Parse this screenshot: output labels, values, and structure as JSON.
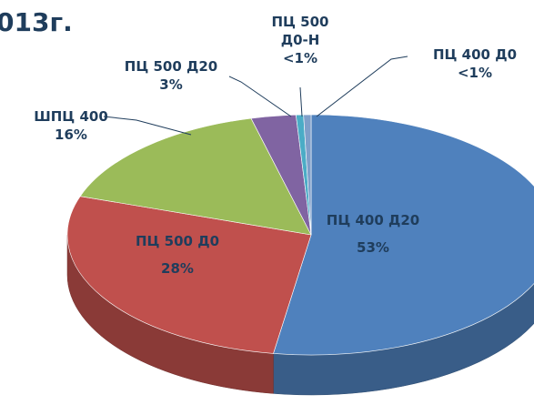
{
  "chart_data": {
    "type": "pie3d",
    "title": "013г.",
    "categories": [
      "ПЦ 400 Д20",
      "ПЦ 500 Д0",
      "ШПЦ 400",
      "ПЦ 500 Д20",
      "ПЦ 500 Д0-Н",
      "ПЦ 400 Д0"
    ],
    "values": [
      53,
      28,
      16,
      3,
      0.5,
      0.5
    ],
    "value_labels": [
      "53%",
      "28%",
      "16%",
      "3%",
      "<1%",
      "<1%"
    ],
    "colors": [
      "#4f81bd",
      "#c0504d",
      "#9bbb59",
      "#8064a2",
      "#4bacc6",
      "#7f9fc9"
    ]
  }
}
